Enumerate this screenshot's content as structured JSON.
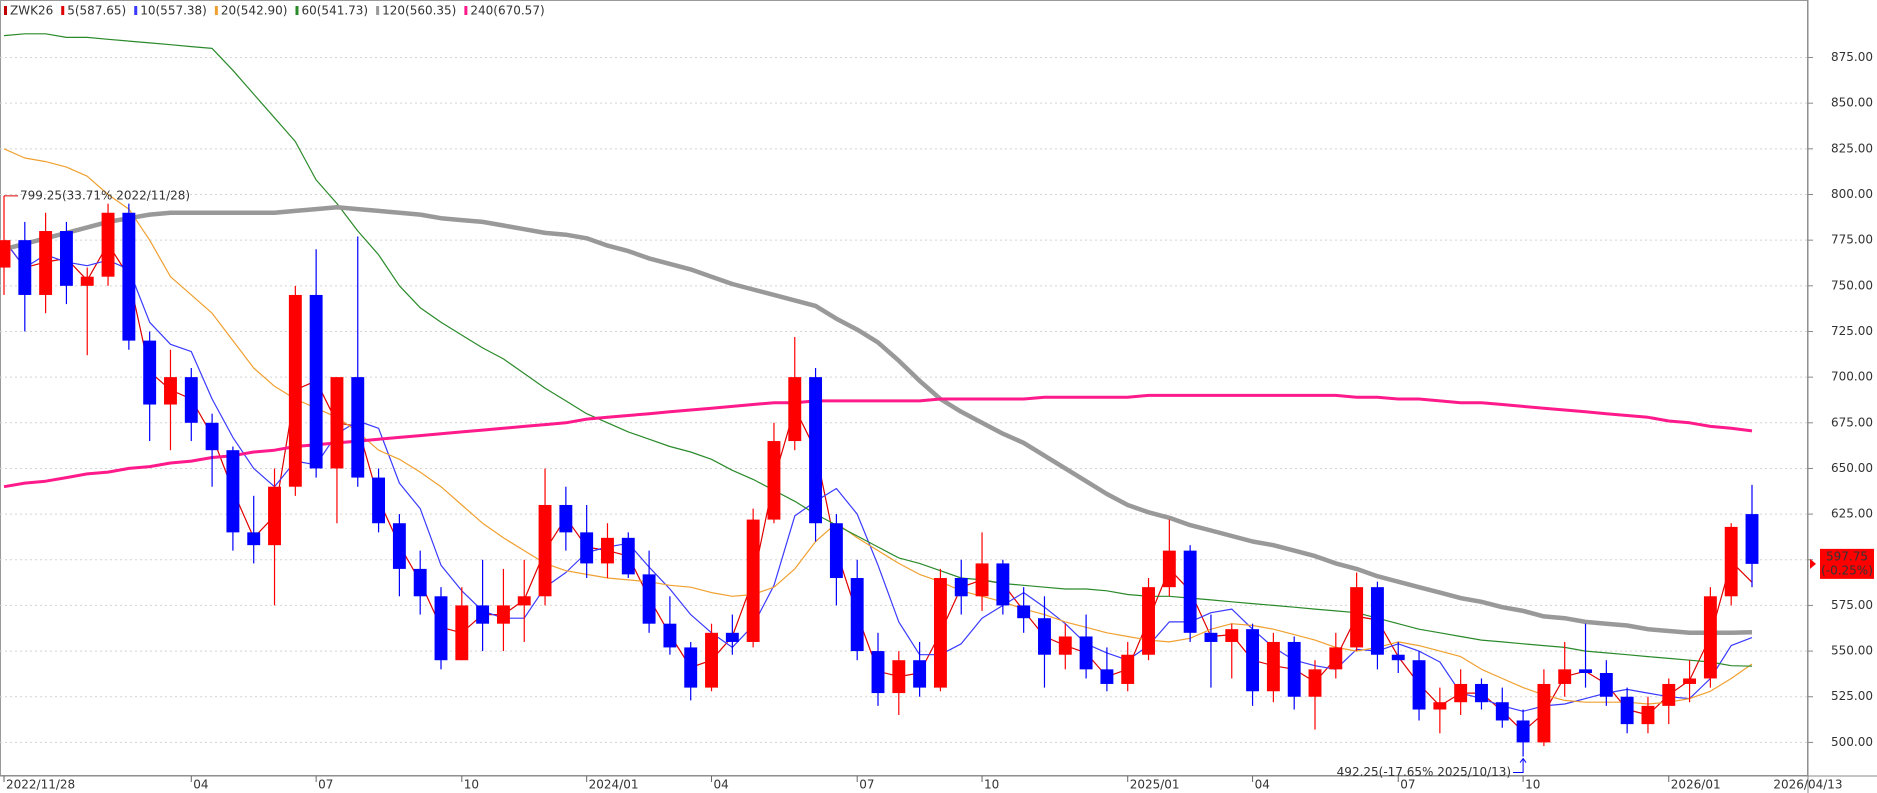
{
  "chart_data": {
    "type": "candlestick",
    "title": "ZWK26",
    "categories": [
      "2022/11/28",
      null,
      null,
      null,
      null,
      null,
      null,
      null,
      null,
      "04",
      null,
      null,
      null,
      null,
      null,
      "07",
      null,
      null,
      null,
      null,
      null,
      null,
      "10",
      null,
      null,
      null,
      null,
      null,
      "2024/01",
      null,
      null,
      null,
      null,
      null,
      "04",
      null,
      null,
      null,
      null,
      null,
      null,
      "07",
      null,
      null,
      null,
      null,
      null,
      "10",
      null,
      null,
      null,
      null,
      null,
      null,
      "2025/01",
      null,
      null,
      null,
      null,
      null,
      "04",
      null,
      null,
      null,
      null,
      null,
      null,
      "07",
      null,
      null,
      null,
      null,
      null,
      "10",
      null,
      null,
      null,
      null,
      null,
      null,
      "2026/01",
      null,
      null,
      null,
      null
    ],
    "open": [
      760,
      775,
      745,
      780,
      750,
      755,
      790,
      720,
      685,
      700,
      675,
      660,
      615,
      608,
      640,
      745,
      650,
      700,
      645,
      620,
      595,
      580,
      545,
      575,
      565,
      575,
      580,
      630,
      615,
      598,
      612,
      592,
      565,
      552,
      530,
      560,
      555,
      622,
      665,
      700,
      620,
      590,
      550,
      527,
      545,
      530,
      590,
      580,
      598,
      575,
      568,
      548,
      558,
      540,
      532,
      548,
      585,
      605,
      560,
      555,
      562,
      528,
      555,
      525,
      540,
      552,
      585,
      548,
      545,
      518,
      522,
      532,
      522,
      512,
      500,
      532,
      540,
      538,
      525,
      510,
      520,
      532,
      535,
      580,
      625
    ],
    "high": [
      799.25,
      785,
      790,
      785,
      760,
      795,
      795,
      725,
      715,
      705,
      680,
      662,
      635,
      650,
      750,
      770,
      700,
      777,
      650,
      625,
      605,
      585,
      585,
      600,
      595,
      600,
      650,
      640,
      630,
      620,
      615,
      605,
      580,
      555,
      565,
      570,
      628,
      675,
      722,
      705,
      625,
      600,
      560,
      550,
      555,
      595,
      600,
      615,
      600,
      585,
      580,
      565,
      570,
      552,
      555,
      590,
      622,
      608,
      570,
      565,
      565,
      560,
      558,
      545,
      560,
      593,
      588,
      555,
      550,
      530,
      540,
      535,
      530,
      518,
      540,
      555,
      565,
      545,
      530,
      525,
      535,
      545,
      585,
      620,
      641
    ],
    "low": [
      745,
      725,
      735,
      740,
      712,
      750,
      715,
      665,
      660,
      665,
      640,
      605,
      598,
      575,
      635,
      645,
      620,
      640,
      615,
      580,
      570,
      540,
      545,
      550,
      550,
      555,
      575,
      605,
      590,
      590,
      590,
      560,
      548,
      523,
      528,
      548,
      552,
      620,
      660,
      610,
      575,
      545,
      520,
      515,
      525,
      528,
      570,
      572,
      570,
      560,
      530,
      540,
      535,
      528,
      528,
      545,
      580,
      555,
      530,
      535,
      520,
      522,
      518,
      507,
      535,
      550,
      540,
      538,
      512,
      505,
      515,
      518,
      508,
      492.25,
      498,
      525,
      530,
      520,
      505,
      505,
      510,
      522,
      530,
      575,
      585
    ],
    "close": [
      775,
      745,
      780,
      750,
      755,
      790,
      720,
      685,
      700,
      675,
      660,
      615,
      608,
      640,
      745,
      650,
      700,
      645,
      620,
      595,
      580,
      545,
      575,
      565,
      575,
      580,
      630,
      615,
      598,
      612,
      592,
      565,
      552,
      530,
      560,
      555,
      622,
      665,
      700,
      620,
      590,
      550,
      527,
      545,
      530,
      590,
      580,
      598,
      575,
      568,
      548,
      558,
      540,
      532,
      548,
      585,
      605,
      560,
      555,
      562,
      528,
      555,
      525,
      540,
      552,
      585,
      548,
      545,
      518,
      522,
      532,
      522,
      512,
      500,
      532,
      540,
      538,
      525,
      510,
      520,
      532,
      535,
      580,
      618,
      597.75
    ],
    "up_color": "#ff0000",
    "down_color": "#0000ff",
    "series": [
      {
        "name": "5(587.65)",
        "color": "#e00000",
        "width": 1.2,
        "values": [
          775,
          760,
          763,
          765,
          753,
          773,
          755,
          703,
          693,
          688,
          668,
          638,
          612,
          624,
          693,
          698,
          675,
          673,
          633,
          608,
          588,
          563,
          560,
          570,
          570,
          578,
          605,
          623,
          607,
          605,
          602,
          579,
          559,
          541,
          545,
          558,
          589,
          644,
          683,
          660,
          605,
          570,
          539,
          536,
          538,
          560,
          585,
          589,
          587,
          572,
          558,
          553,
          549,
          536,
          540,
          567,
          595,
          583,
          558,
          559,
          545,
          542,
          540,
          533,
          546,
          569,
          567,
          547,
          532,
          520,
          527,
          527,
          517,
          506,
          516,
          536,
          539,
          532,
          518,
          515,
          526,
          534,
          558,
          599,
          587.65
        ]
      },
      {
        "name": "10(557.38)",
        "color": "#3a3aff",
        "width": 1.2,
        "values": [
          775,
          760,
          767,
          763,
          761,
          764,
          759,
          730,
          718,
          714,
          688,
          667,
          650,
          640,
          654,
          652,
          669,
          676,
          672,
          642,
          628,
          597,
          583,
          572,
          568,
          568,
          585,
          593,
          604,
          607,
          609,
          596,
          584,
          570,
          560,
          552,
          564,
          586,
          624,
          632,
          639,
          625,
          597,
          566,
          548,
          548,
          554,
          568,
          575,
          582,
          574,
          565,
          554,
          549,
          545,
          553,
          566,
          566,
          571,
          573,
          562,
          552,
          545,
          542,
          540,
          551,
          550,
          554,
          550,
          544,
          527,
          524,
          520,
          517,
          520,
          521,
          524,
          527,
          529,
          527,
          525,
          524,
          535,
          553,
          557.38
        ]
      },
      {
        "name": "20(542.90)",
        "color": "#f0a030",
        "width": 1.2,
        "values": [
          825,
          820,
          818,
          815,
          810,
          800,
          792,
          775,
          755,
          745,
          735,
          720,
          705,
          695,
          688,
          683,
          678,
          670,
          660,
          655,
          648,
          640,
          630,
          620,
          612,
          605,
          598,
          594,
          592,
          590,
          589,
          588,
          586,
          585,
          582,
          580,
          581,
          585,
          595,
          610,
          620,
          612,
          605,
          598,
          592,
          588,
          583,
          580,
          577,
          573,
          570,
          566,
          563,
          560,
          558,
          556,
          555,
          557,
          562,
          565,
          564,
          562,
          559,
          556,
          552,
          550,
          552,
          555,
          553,
          550,
          547,
          540,
          535,
          530,
          526,
          523,
          522,
          522,
          522,
          521,
          522,
          524,
          528,
          535,
          542.9
        ]
      },
      {
        "name": "60(541.73)",
        "color": "#2a8a2a",
        "width": 1.2,
        "values": [
          887,
          888,
          888,
          886,
          886,
          885,
          884,
          883,
          882,
          881,
          880,
          868,
          855,
          842,
          829,
          808,
          795,
          780,
          767,
          750,
          738,
          730,
          723,
          716,
          710,
          702,
          694,
          687,
          680,
          675,
          670,
          666,
          662,
          659,
          655,
          649,
          644,
          638,
          632,
          625,
          619,
          613,
          607,
          601,
          598,
          594,
          590,
          589,
          587,
          586,
          585,
          584,
          584,
          583,
          581,
          580,
          580,
          579,
          578,
          577,
          576,
          575,
          574,
          573,
          572,
          571,
          568,
          565,
          562,
          560,
          558,
          556,
          555,
          554,
          553,
          552,
          550,
          549,
          548,
          547,
          546,
          545,
          544,
          542,
          541.73
        ]
      },
      {
        "name": "120(560.35)",
        "color": "#999999",
        "width": 4.5,
        "values": [
          770,
          773,
          776,
          779,
          782,
          785,
          787,
          789,
          790,
          790,
          790,
          790,
          790,
          790,
          791,
          792,
          793,
          792,
          791,
          790,
          789,
          787,
          786,
          785,
          783,
          781,
          779,
          778,
          776,
          772,
          769,
          765,
          762,
          759,
          755,
          751,
          748,
          745,
          742,
          739,
          732,
          726,
          719,
          709,
          698,
          688,
          681,
          675,
          669,
          664,
          657,
          650,
          643,
          636,
          630,
          626,
          623,
          619,
          616,
          613,
          610,
          608,
          605,
          602,
          598,
          595,
          591,
          588,
          585,
          582,
          579,
          577,
          574,
          572,
          569,
          568,
          566,
          565,
          564,
          562,
          561,
          560,
          560,
          560,
          560.35
        ]
      },
      {
        "name": "240(670.57)",
        "color": "#ff1a8c",
        "width": 3,
        "values": [
          640,
          642,
          643,
          645,
          647,
          648,
          650,
          651,
          653,
          654,
          656,
          657,
          659,
          660,
          662,
          663,
          664,
          665,
          666,
          667,
          668,
          669,
          670,
          671,
          672,
          673,
          674,
          675,
          677,
          678,
          679,
          680,
          681,
          682,
          683,
          684,
          685,
          686,
          686,
          687,
          687,
          687,
          687,
          687,
          687,
          688,
          688,
          688,
          688,
          688,
          689,
          689,
          689,
          689,
          689,
          690,
          690,
          690,
          690,
          690,
          690,
          690,
          690,
          690,
          690,
          689,
          689,
          688,
          688,
          687,
          686,
          686,
          685,
          684,
          683,
          682,
          681,
          680,
          679,
          678,
          676,
          675,
          673,
          672,
          670.57
        ]
      }
    ],
    "ylim": [
      481.6,
      906.5
    ],
    "yticks": [
      {
        "value": 500,
        "label": "500.00"
      },
      {
        "value": 525,
        "label": "525.00"
      },
      {
        "value": 550,
        "label": "550.00"
      },
      {
        "value": 575,
        "label": "575.00"
      },
      {
        "value": 600,
        "label": "600.00"
      },
      {
        "value": 625,
        "label": "625.00"
      },
      {
        "value": 650,
        "label": "650.00"
      },
      {
        "value": 675,
        "label": "675.00"
      },
      {
        "value": 700,
        "label": "700.00"
      },
      {
        "value": 725,
        "label": "725.00"
      },
      {
        "value": 750,
        "label": "750.00"
      },
      {
        "value": 775,
        "label": "775.00"
      },
      {
        "value": 800,
        "label": "800.00"
      },
      {
        "value": 825,
        "label": "825.00"
      },
      {
        "value": 850,
        "label": "850.00"
      },
      {
        "value": 875,
        "label": "875.00"
      }
    ],
    "grid": true,
    "x_end_label": "2026/04/13",
    "annotations": [
      {
        "text": "799.25(33.71% 2022/11/28)",
        "value": 799.25,
        "color": "#e00000"
      },
      {
        "text": "492.25(-17.65% 2025/10/13)",
        "value": 492.25,
        "color": "#0000ff"
      }
    ],
    "last_price": 597.75,
    "last_change": "(-0.25%)",
    "last_color": "#ff0000"
  }
}
